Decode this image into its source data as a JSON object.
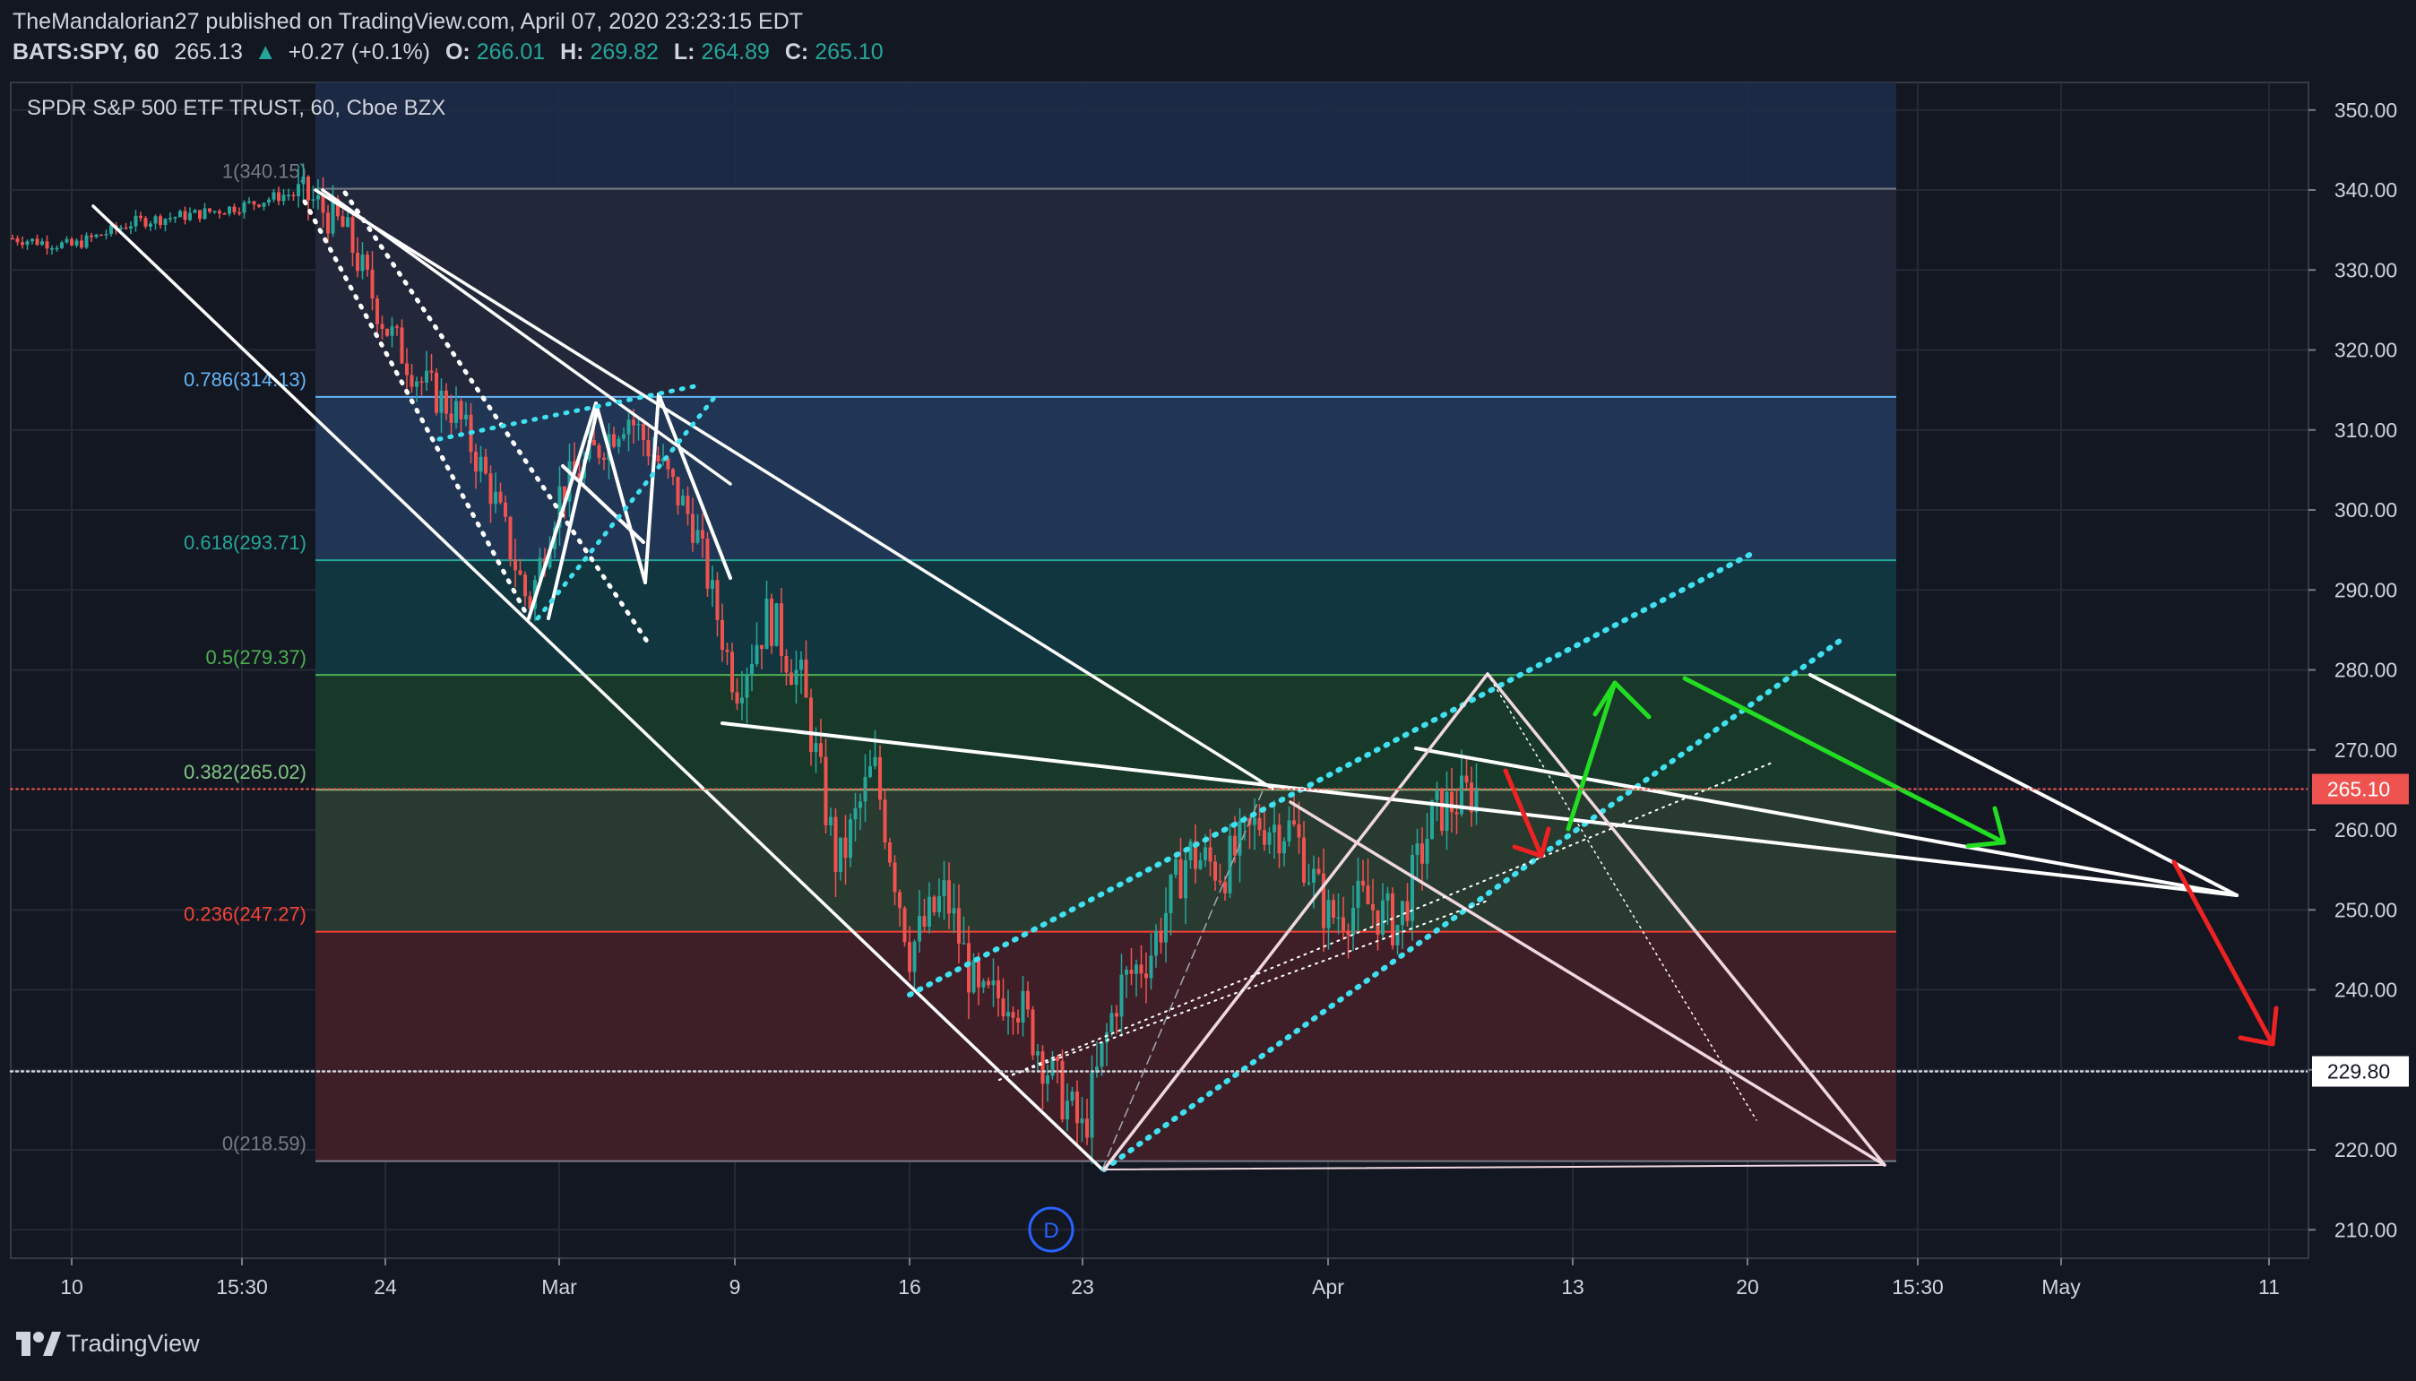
{
  "header": {
    "publisher_line": "TheMandalorian27 published on TradingView.com, April 07, 2020 23:23:15 EDT",
    "symbol": "BATS:SPY, 60",
    "last": "265.13",
    "change": "+0.27 (+0.1%)",
    "ohlc": [
      {
        "label": "O:",
        "value": "266.01"
      },
      {
        "label": "H:",
        "value": "269.82"
      },
      {
        "label": "L:",
        "value": "264.89"
      },
      {
        "label": "C:",
        "value": "265.10"
      }
    ]
  },
  "legend": {
    "title": "SPDR S&P 500 ETF TRUST, 60, Cboe BZX"
  },
  "footer": {
    "brand": "TradingView"
  },
  "colors": {
    "background": "#131722",
    "up": "#26a69a",
    "down": "#ef5350",
    "text": "#d1d4dc",
    "green_arrow": "#22dd22",
    "red_arrow": "#ee2222",
    "dotted_channel": "#40e0f0"
  },
  "chart_data": {
    "type": "candlestick",
    "title": "SPDR S&P 500 ETF TRUST, 60, Cboe BZX",
    "y_axis": {
      "ticks": [
        "350.00",
        "340.00",
        "330.00",
        "320.00",
        "310.00",
        "300.00",
        "290.00",
        "280.00",
        "270.00",
        "260.00",
        "250.00",
        "240.00",
        "230.00",
        "220.00",
        "210.00"
      ],
      "range": [
        206,
        357
      ]
    },
    "x_axis": {
      "tick_labels": [
        "10",
        "15:30",
        "24",
        "Mar",
        "9",
        "16",
        "23",
        "Apr",
        "13",
        "20",
        "15:30",
        "May",
        "11"
      ]
    },
    "last_price_label": "265.10",
    "horizontal_level_label": "229.80",
    "fibonacci": [
      {
        "level": "1",
        "value": 340.15,
        "label": "1(340.15)",
        "color": "#787b86"
      },
      {
        "level": "0.786",
        "value": 314.13,
        "label": "0.786(314.13)",
        "color": "#64b5f6"
      },
      {
        "level": "0.618",
        "value": 293.71,
        "label": "0.618(293.71)",
        "color": "#26a69a"
      },
      {
        "level": "0.5",
        "value": 279.37,
        "label": "0.5(279.37)",
        "color": "#4caf50"
      },
      {
        "level": "0.382",
        "value": 265.02,
        "label": "0.382(265.02)",
        "color": "#81c784"
      },
      {
        "level": "0.236",
        "value": 247.27,
        "label": "0.236(247.27)",
        "color": "#f44336"
      },
      {
        "level": "0",
        "value": 218.59,
        "label": "0(218.59)",
        "color": "#787b86"
      }
    ],
    "price_path": [
      {
        "date": "Feb 07",
        "price": 334
      },
      {
        "date": "Feb 10",
        "price": 333
      },
      {
        "date": "Feb 12",
        "price": 336
      },
      {
        "date": "Feb 14",
        "price": 337
      },
      {
        "date": "Feb 17",
        "price": 338
      },
      {
        "date": "Feb 19",
        "price": 339.5
      },
      {
        "date": "Feb 20",
        "price": 339
      },
      {
        "date": "Feb 21",
        "price": 335
      },
      {
        "date": "Feb 24",
        "price": 323
      },
      {
        "date": "Feb 25",
        "price": 316
      },
      {
        "date": "Feb 26",
        "price": 312
      },
      {
        "date": "Feb 27",
        "price": 302
      },
      {
        "date": "Feb 28",
        "price": 288
      },
      {
        "date": "Mar 02",
        "price": 302
      },
      {
        "date": "Mar 03",
        "price": 307
      },
      {
        "date": "Mar 04",
        "price": 312
      },
      {
        "date": "Mar 05",
        "price": 306
      },
      {
        "date": "Mar 06",
        "price": 298
      },
      {
        "date": "Mar 09",
        "price": 278
      },
      {
        "date": "Mar 10",
        "price": 287
      },
      {
        "date": "Mar 11",
        "price": 278
      },
      {
        "date": "Mar 12",
        "price": 255
      },
      {
        "date": "Mar 13",
        "price": 268
      },
      {
        "date": "Mar 16",
        "price": 245
      },
      {
        "date": "Mar 17",
        "price": 252
      },
      {
        "date": "Mar 18",
        "price": 238
      },
      {
        "date": "Mar 19",
        "price": 240
      },
      {
        "date": "Mar 20",
        "price": 230
      },
      {
        "date": "Mar 23",
        "price": 222
      },
      {
        "date": "Mar 24",
        "price": 240
      },
      {
        "date": "Mar 25",
        "price": 245
      },
      {
        "date": "Mar 26",
        "price": 257
      },
      {
        "date": "Mar 27",
        "price": 255
      },
      {
        "date": "Mar 30",
        "price": 261
      },
      {
        "date": "Mar 31",
        "price": 260
      },
      {
        "date": "Apr 01",
        "price": 249
      },
      {
        "date": "Apr 02",
        "price": 251
      },
      {
        "date": "Apr 03",
        "price": 248
      },
      {
        "date": "Apr 06",
        "price": 262
      },
      {
        "date": "Apr 07",
        "price": 265.1
      }
    ]
  }
}
